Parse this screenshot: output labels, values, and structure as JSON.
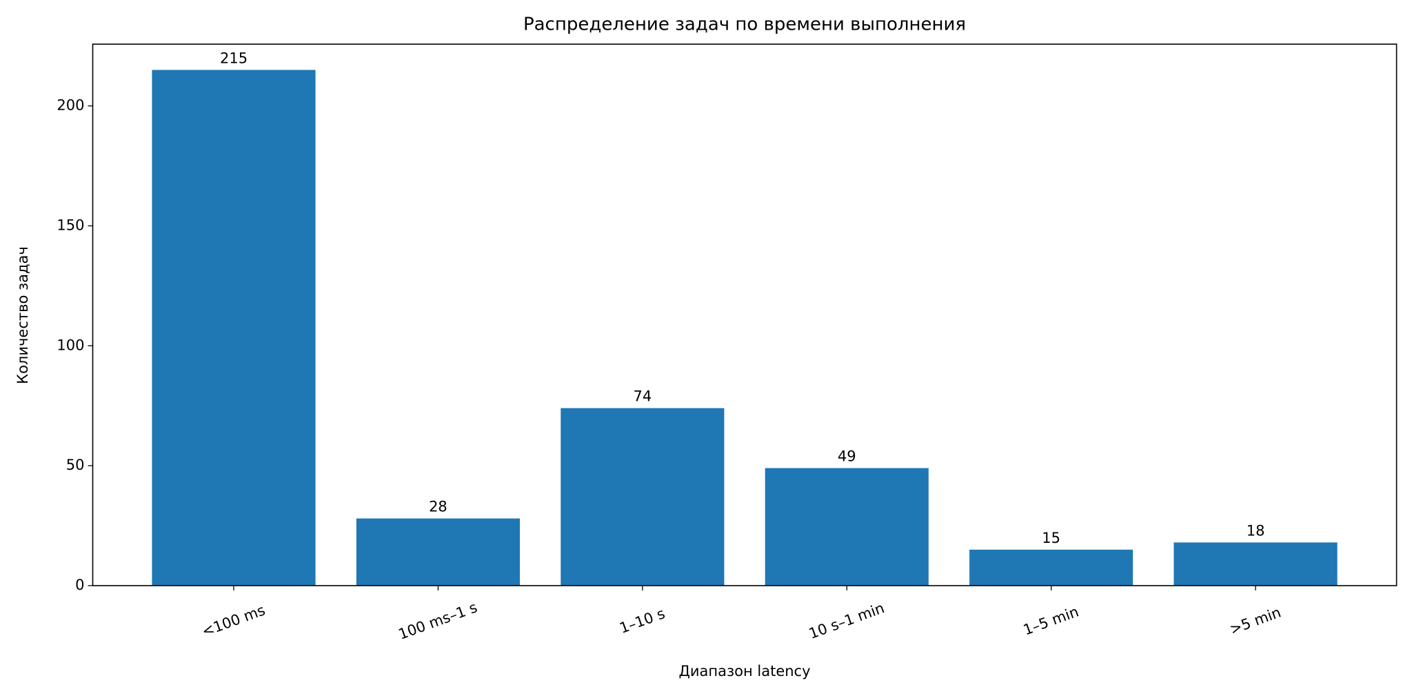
{
  "chart_data": {
    "type": "bar",
    "title": "Распределение задач по времени выполнения",
    "x_label": "Диапазон latency",
    "y_label": "Количество задач",
    "categories": [
      "<100 ms",
      "100 ms–1 s",
      "1–10 s",
      "10 s–1 min",
      "1–5 min",
      ">5 min"
    ],
    "values": [
      215,
      28,
      74,
      49,
      15,
      18
    ],
    "color": "#1f77b4",
    "ylim": [
      0,
      225.75
    ],
    "yticks": [
      0,
      50,
      100,
      150,
      200
    ],
    "grid": false
  }
}
